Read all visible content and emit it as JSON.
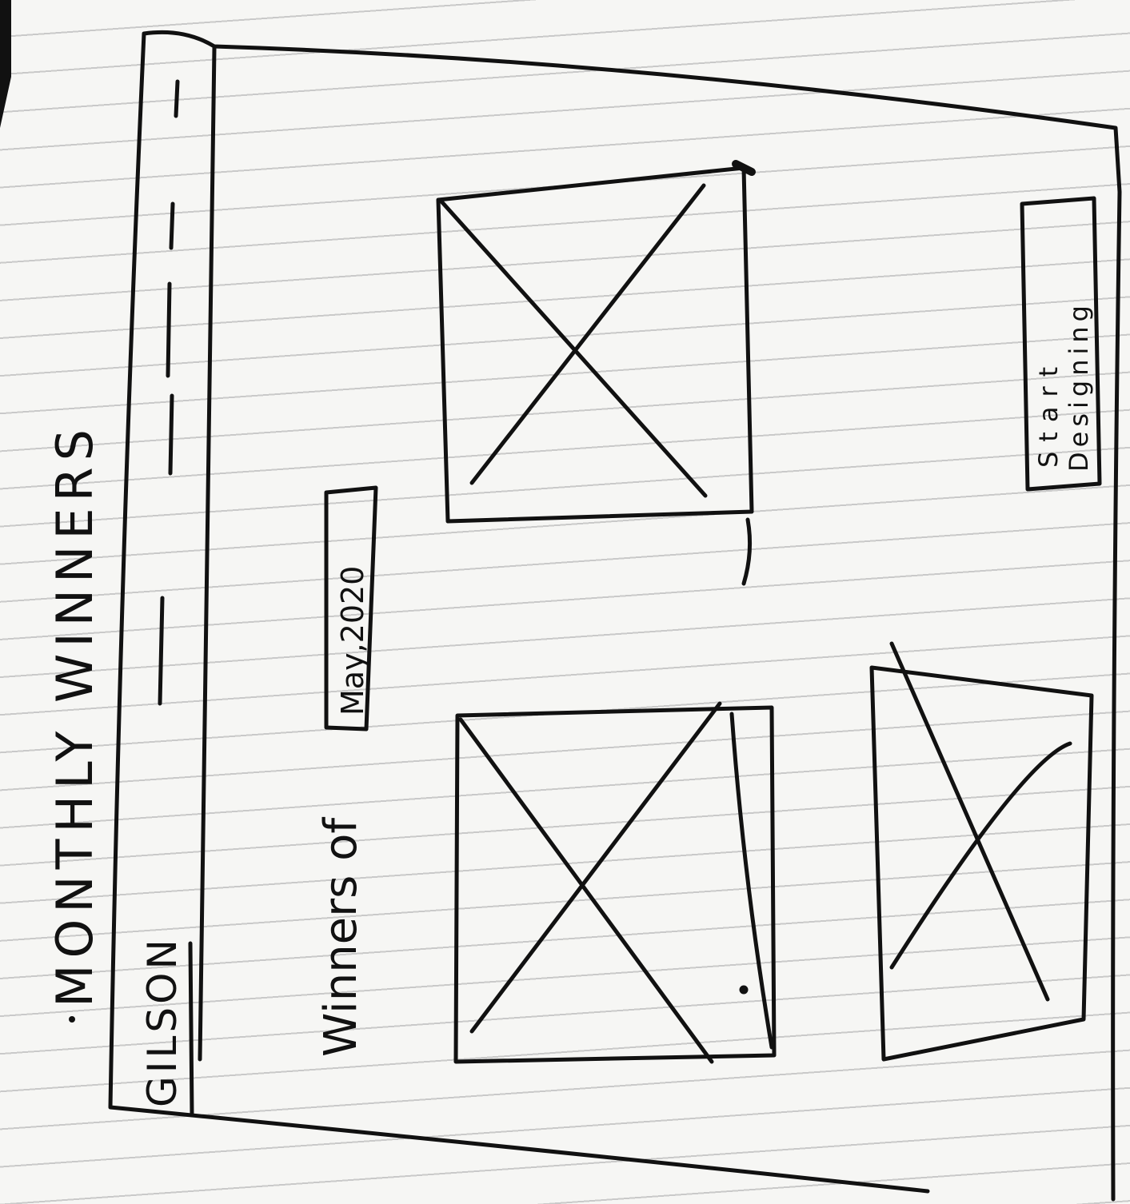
{
  "page_heading": "MONTHLY WINNERS",
  "header": {
    "logo_text": "GILSON"
  },
  "winners_section": {
    "label": "Winners of",
    "month_selector": "May,2020"
  },
  "cta": {
    "line1": "Start",
    "line2": "Designing"
  },
  "colors": {
    "ink": "#111111",
    "paper": "#f6f6f4",
    "rule": "#c9c9c9"
  }
}
